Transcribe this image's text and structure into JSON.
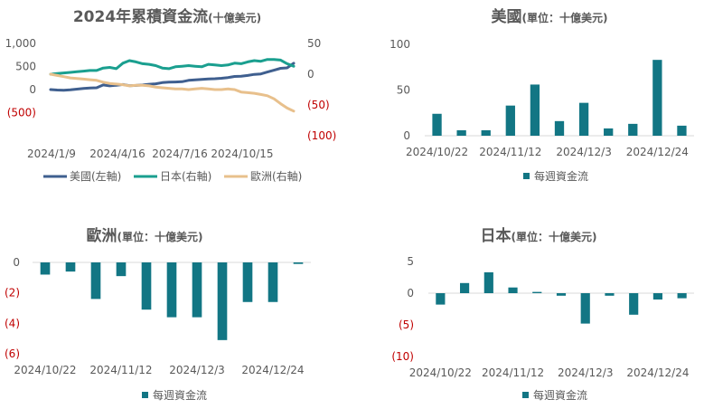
{
  "charts": [
    {
      "id": "cumulative",
      "title_main": "2024年累積資金流",
      "title_sub": "(十億美元)",
      "type": "line",
      "x_ticks": [
        "2024/1/9",
        "2024/4/16",
        "2024/7/16",
        "2024/10/15"
      ],
      "left_axis": {
        "min": -1000,
        "max": 1000,
        "ticks": [
          {
            "v": 1000,
            "label": "1,000"
          },
          {
            "v": 500,
            "label": "500"
          },
          {
            "v": 0,
            "label": "0"
          },
          {
            "v": -500,
            "label": "(500)"
          }
        ]
      },
      "right_axis": {
        "min": -100,
        "max": 50,
        "ticks": [
          {
            "v": 50,
            "label": "50"
          },
          {
            "v": 0,
            "label": "0"
          },
          {
            "v": -50,
            "label": "(50)"
          },
          {
            "v": -100,
            "label": "(100)"
          }
        ]
      },
      "legend": [
        "美國(左軸)",
        "日本(右軸)",
        "歐洲(右軸)"
      ]
    },
    {
      "id": "us",
      "title_main": "美國",
      "title_sub": "(單位：十億美元)",
      "y_ticks": [
        {
          "v": 100,
          "label": "100"
        },
        {
          "v": 50,
          "label": "50"
        },
        {
          "v": 0,
          "label": "0"
        }
      ],
      "x_ticks": [
        "2024/10/22",
        "2024/11/12",
        "2024/12/3",
        "2024/12/24"
      ],
      "legend": "每週資金流"
    },
    {
      "id": "europe",
      "title_main": "歐洲",
      "title_sub": "(單位：十億美元)",
      "y_ticks": [
        {
          "v": 0,
          "label": "0"
        },
        {
          "v": -2,
          "label": "(2)"
        },
        {
          "v": -4,
          "label": "(4)"
        },
        {
          "v": -6,
          "label": "(6)"
        }
      ],
      "x_ticks": [
        "2024/10/22",
        "2024/11/12",
        "2024/12/3",
        "2024/12/24"
      ],
      "legend": "每週資金流"
    },
    {
      "id": "japan",
      "title_main": "日本",
      "title_sub": "(單位：十億美元)",
      "y_ticks": [
        {
          "v": 5,
          "label": "5"
        },
        {
          "v": 0,
          "label": "0"
        },
        {
          "v": -5,
          "label": "(5)"
        },
        {
          "v": -10,
          "label": "(10)"
        }
      ],
      "x_ticks": [
        "2024/10/22",
        "2024/11/12",
        "2024/12/3",
        "2024/12/24"
      ],
      "legend": "每週資金流"
    }
  ],
  "colors": {
    "us": "#3f5f8f",
    "japan": "#1a9f8f",
    "europe": "#e8c08c",
    "bar": "#127684"
  },
  "chart_data": [
    {
      "type": "line",
      "series": [
        {
          "name": "美國(左軸)",
          "axis": "left",
          "values": [
            0,
            -10,
            -15,
            -5,
            10,
            25,
            35,
            40,
            100,
            80,
            95,
            110,
            85,
            90,
            100,
            115,
            125,
            150,
            160,
            165,
            170,
            200,
            210,
            220,
            230,
            235,
            245,
            260,
            285,
            290,
            305,
            330,
            340,
            380,
            420,
            460,
            470,
            570
          ]
        },
        {
          "name": "日本(右軸)",
          "axis": "right",
          "values": [
            0,
            1,
            2,
            3,
            4,
            5,
            6,
            6,
            10,
            11,
            9,
            18,
            22,
            20,
            17,
            16,
            14,
            10,
            9,
            12,
            13,
            14,
            13,
            12,
            16,
            15,
            14,
            15,
            18,
            17,
            20,
            22,
            21,
            24,
            24,
            23,
            17,
            13
          ]
        },
        {
          "name": "歐洲(右軸)",
          "axis": "right",
          "values": [
            0,
            -2,
            -4,
            -6,
            -7,
            -8,
            -9,
            -10,
            -13,
            -15,
            -16,
            -17,
            -19,
            -18,
            -18,
            -19,
            -21,
            -22,
            -23,
            -24,
            -24,
            -25,
            -24,
            -23,
            -24,
            -25,
            -25,
            -24,
            -25,
            -29,
            -30,
            -31,
            -33,
            -35,
            -40,
            -48,
            -55,
            -60
          ]
        }
      ]
    },
    {
      "type": "bar",
      "name": "美國",
      "series_name": "每週資金流",
      "values": [
        24,
        6,
        6,
        33,
        56,
        16,
        36,
        8,
        13,
        83,
        11
      ]
    },
    {
      "type": "bar",
      "name": "歐洲",
      "series_name": "每週資金流",
      "values": [
        -0.8,
        -0.6,
        -2.4,
        -0.9,
        -3.1,
        -3.6,
        -3.6,
        -5.1,
        -2.6,
        -2.6,
        -0.1
      ]
    },
    {
      "type": "bar",
      "name": "日本",
      "series_name": "每週資金流",
      "values": [
        -1.8,
        1.6,
        3.3,
        0.9,
        0.2,
        -0.4,
        -4.8,
        -0.4,
        -3.4,
        -1.0,
        -0.8
      ]
    }
  ]
}
